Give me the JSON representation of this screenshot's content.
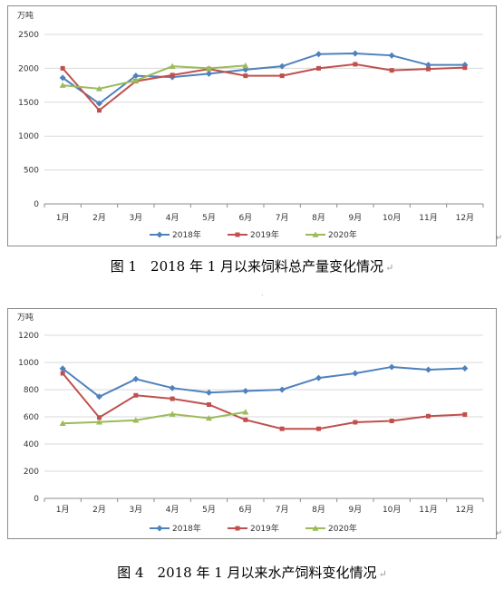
{
  "charts": [
    {
      "type": "line",
      "unit_label": "万吨",
      "ylim": [
        0,
        2500
      ],
      "yticks": [
        "0",
        "500",
        "1000",
        "1500",
        "2000",
        "2500"
      ],
      "categories": [
        "1月",
        "2月",
        "3月",
        "4月",
        "5月",
        "6月",
        "7月",
        "8月",
        "9月",
        "10月",
        "11月",
        "12月"
      ],
      "series": [
        {
          "name": "2018年",
          "color": "#4f81bd",
          "marker": "diamond",
          "values": [
            1860,
            1480,
            1890,
            1870,
            1920,
            1980,
            2030,
            2210,
            2220,
            2190,
            2050,
            2050
          ]
        },
        {
          "name": "2019年",
          "color": "#c0504d",
          "marker": "square",
          "values": [
            2000,
            1380,
            1810,
            1900,
            1990,
            1890,
            1890,
            2000,
            2060,
            1970,
            1990,
            2010
          ]
        },
        {
          "name": "2020年",
          "color": "#9bbb59",
          "marker": "triangle",
          "values": [
            1750,
            1700,
            1820,
            2030,
            2000,
            2040
          ]
        }
      ],
      "legend_position": "bottom",
      "grid": true
    },
    {
      "type": "line",
      "unit_label": "万吨",
      "ylim": [
        0,
        1200
      ],
      "yticks": [
        "0",
        "200",
        "400",
        "600",
        "800",
        "1000",
        "1200"
      ],
      "categories": [
        "1月",
        "2月",
        "3月",
        "4月",
        "5月",
        "6月",
        "7月",
        "8月",
        "9月",
        "10月",
        "11月",
        "12月"
      ],
      "series": [
        {
          "name": "2018年",
          "color": "#4f81bd",
          "marker": "diamond",
          "values": [
            955,
            748,
            878,
            812,
            778,
            790,
            800,
            886,
            920,
            967,
            947,
            957
          ]
        },
        {
          "name": "2019年",
          "color": "#c0504d",
          "marker": "square",
          "values": [
            920,
            595,
            758,
            733,
            690,
            578,
            512,
            512,
            560,
            570,
            605,
            617
          ]
        },
        {
          "name": "2020年",
          "color": "#9bbb59",
          "marker": "triangle",
          "values": [
            552,
            562,
            575,
            620,
            590,
            635
          ]
        }
      ],
      "legend_position": "bottom",
      "grid": true
    }
  ],
  "captions": [
    "图 1　2018 年 1 月以来饲料总产量变化情况",
    "图 4　2018 年 1 月以来水产饲料变化情况"
  ],
  "return_mark": "↵"
}
